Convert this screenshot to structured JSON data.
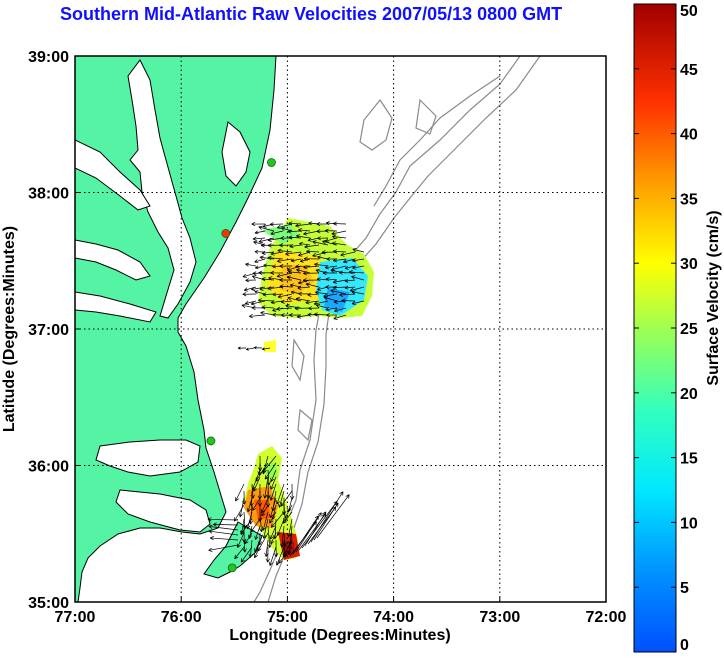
{
  "chart_data": {
    "type": "heatmap",
    "title": "Southern Mid-Atlantic Raw Velocities 2007/05/13 0800 GMT",
    "xlabel": "Longitude (Degrees:Minutes)",
    "ylabel": "Latitude (Degrees:Minutes)",
    "colorbar_label": "Surface Velocity (cm/s)",
    "x_ticks": [
      "77:00",
      "76:00",
      "75:00",
      "74:00",
      "73:00",
      "72:00"
    ],
    "y_ticks": [
      "39:00",
      "38:00",
      "37:00",
      "36:00",
      "35:00"
    ],
    "colorbar_ticks": [
      "0",
      "5",
      "10",
      "15",
      "20",
      "25",
      "30",
      "35",
      "40",
      "45",
      "50"
    ],
    "xlim": [
      -77,
      -72
    ],
    "ylim": [
      35,
      39
    ],
    "clim": [
      0,
      50
    ],
    "grid": true,
    "land_color": "#55f3a4",
    "colormap": "jet",
    "stations": [
      {
        "lon": -75.15,
        "lat": 38.22,
        "color": "#22c522"
      },
      {
        "lon": -75.58,
        "lat": 37.7,
        "color": "#ff3010"
      },
      {
        "lon": -75.72,
        "lat": 36.18,
        "color": "#22c522"
      },
      {
        "lon": -75.52,
        "lat": 35.25,
        "color": "#22c522"
      }
    ],
    "velocity_regions": [
      {
        "lon_range": [
          -75.25,
          -74.1
        ],
        "lat_range": [
          37.08,
          37.8
        ],
        "typical_speed": 20
      },
      {
        "lon_range": [
          -75.35,
          -74.75
        ],
        "lat_range": [
          35.3,
          36.2
        ],
        "typical_speed": 30
      },
      {
        "lon_range": [
          -75.35,
          -75.1
        ],
        "lat_range": [
          36.8,
          36.9
        ],
        "typical_speed": 25
      }
    ]
  }
}
